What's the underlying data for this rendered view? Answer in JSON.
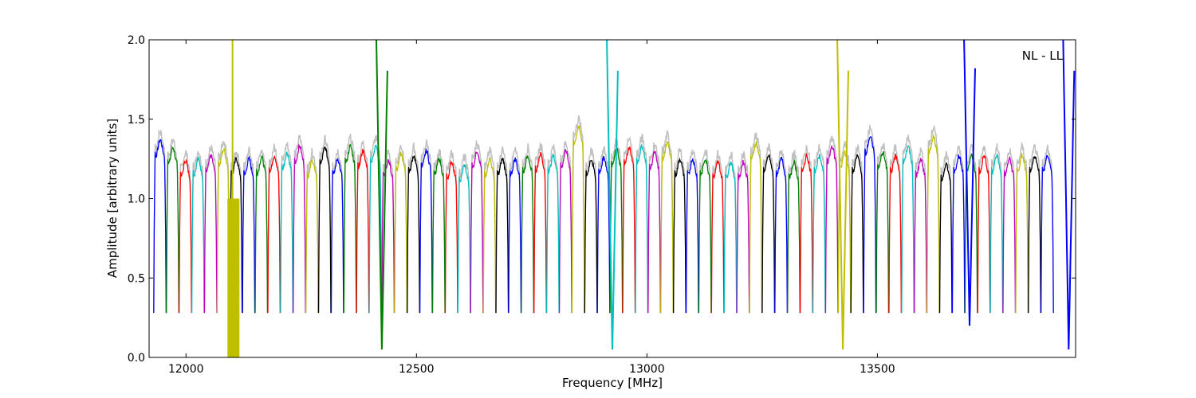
{
  "chart_data": {
    "type": "line",
    "title": "",
    "xlabel": "Frequency [MHz]",
    "ylabel": "Amplitude [arbitrary units]",
    "annotation": "NL - LL",
    "annotation_position": "top-right",
    "xlim": [
      11920,
      13930
    ],
    "ylim": [
      0.0,
      2.0
    ],
    "xticks": [
      12000,
      12500,
      13000,
      13500
    ],
    "xtick_labels": [
      "12000",
      "12500",
      "13000",
      "13500"
    ],
    "yticks": [
      0.0,
      0.5,
      1.0,
      1.5,
      2.0
    ],
    "ytick_labels": [
      "0.0",
      "0.5",
      "1.0",
      "1.5",
      "2.0"
    ],
    "grid": false,
    "legend": "none",
    "channel_width_mhz": 27.5,
    "first_channel_start_mhz": 11930,
    "color_cycle": [
      "#0000ff",
      "#008000",
      "#ff0000",
      "#00bfbf",
      "#bf00bf",
      "#bfbf00",
      "#000000"
    ],
    "background_color": "#c0c0c0",
    "channel_peak_levels": [
      1.32,
      1.27,
      1.19,
      1.2,
      1.22,
      1.26,
      1.2,
      1.2,
      1.21,
      1.22,
      1.24,
      1.28,
      1.19,
      1.27,
      1.2,
      1.28,
      1.25,
      1.28,
      1.19,
      1.23,
      1.22,
      1.25,
      1.2,
      1.18,
      1.16,
      1.25,
      1.2,
      1.2,
      1.2,
      1.22,
      1.23,
      1.22,
      1.25,
      1.4,
      1.2,
      1.21,
      1.26,
      1.27,
      1.28,
      1.24,
      1.3,
      1.2,
      1.2,
      1.2,
      1.18,
      1.18,
      1.18,
      1.3,
      1.22,
      1.2,
      1.18,
      1.22,
      1.22,
      1.28,
      1.24,
      1.22,
      1.34,
      1.24,
      1.22,
      1.28,
      1.2,
      1.34,
      1.17,
      1.22,
      1.22,
      1.22,
      1.22,
      1.2,
      1.22,
      1.22,
      1.22
    ],
    "interference_regions": [
      {
        "x": 12103,
        "min": 0.0,
        "max": 2.0,
        "color": "#bfbf00"
      },
      {
        "x": 12425,
        "min": 0.05,
        "max": 2.0,
        "color": "#008000"
      },
      {
        "x": 12925,
        "min": 0.05,
        "max": 2.0,
        "color": "#00bfbf"
      },
      {
        "x": 13425,
        "min": 0.05,
        "max": 2.0,
        "color": "#bfbf00"
      },
      {
        "x": 13700,
        "min": 0.2,
        "max": 2.0,
        "color": "#0000ff"
      },
      {
        "x": 13915,
        "min": 0.05,
        "max": 2.0,
        "color": "#0000ff"
      }
    ]
  }
}
